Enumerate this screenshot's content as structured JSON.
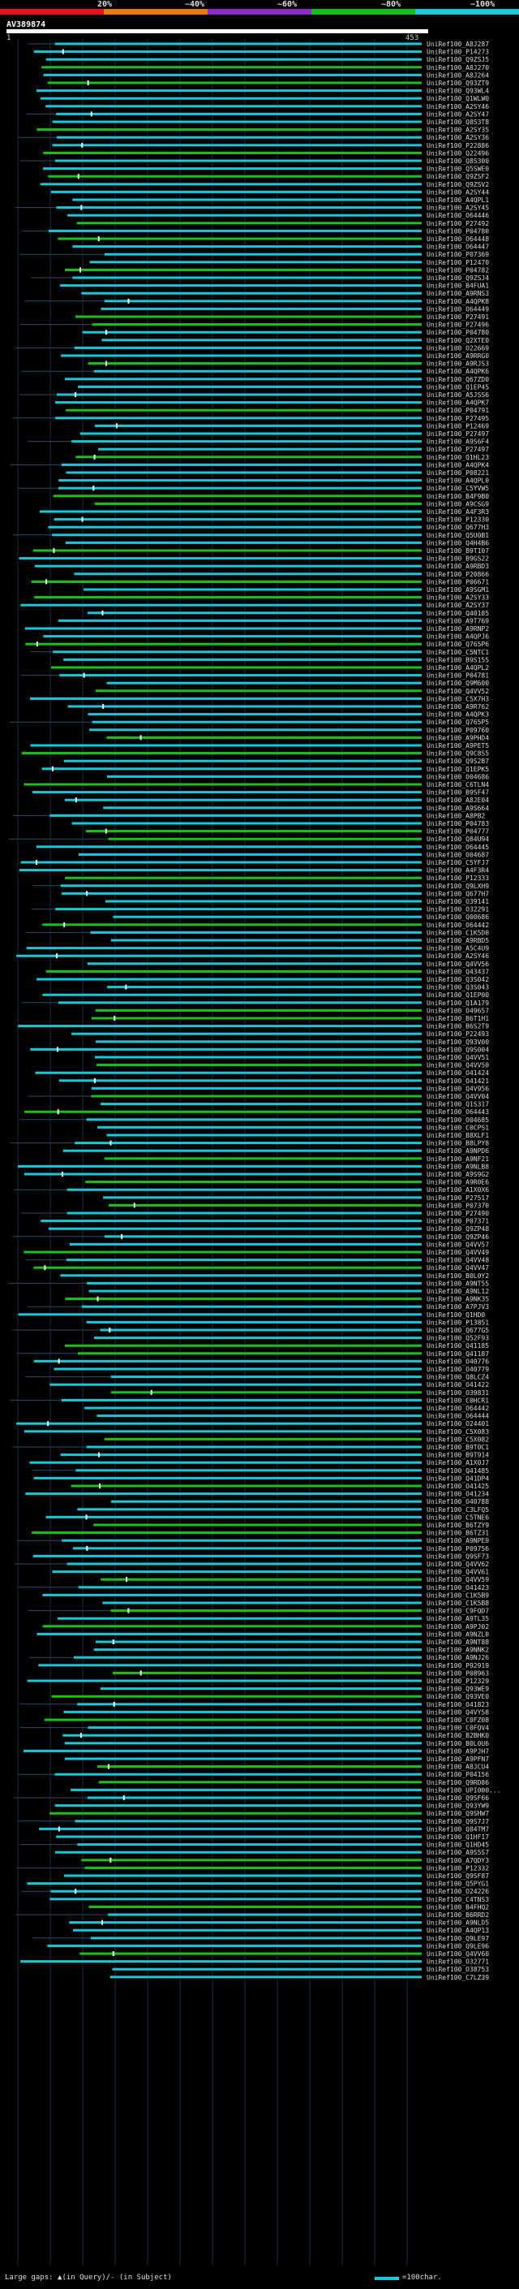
{
  "legend": {
    "labels": [
      "20%",
      "~40%",
      "~60%",
      "~80%",
      "~100%"
    ],
    "colors": [
      "#e8141d",
      "#e87a14",
      "#8c2ac8",
      "#18c018",
      "#18c8d8"
    ]
  },
  "query": {
    "name": "AV389874",
    "start": "1",
    "end": "453"
  },
  "hits": [
    "UniRef100_A8J287",
    "UniRef100_P14273",
    "UniRef100_Q9ZSJ5",
    "UniRef100_A8J270",
    "UniRef100_A8J264",
    "UniRef100_Q93ZT9",
    "UniRef100_Q93WL4",
    "UniRef100_Q1WLW0",
    "UniRef100_A2SY46",
    "UniRef100_A2SY47",
    "UniRef100_Q8S3T8",
    "UniRef100_A2SY35",
    "UniRef100_A2SY36",
    "UniRef100_P22886",
    "UniRef100_Q22496",
    "UniRef100_Q8S300",
    "UniRef100_Q5SWE0",
    "UniRef100_Q9ZSF2",
    "UniRef100_Q9ZSV2",
    "UniRef100_A2SY44",
    "UniRef100_A4QPL1",
    "UniRef100_A2SY45",
    "UniRef100_O64446",
    "UniRef100_P27492",
    "UniRef100_P04780",
    "UniRef100_O64448",
    "UniRef100_O64447",
    "UniRef100_P07369",
    "UniRef100_P12470",
    "UniRef100_P04782",
    "UniRef100_Q9ZSJ4",
    "UniRef100_B4FUA1",
    "UniRef100_A9RNS3",
    "UniRef100_A4QPK8",
    "UniRef100_O64449",
    "UniRef100_P27491",
    "UniRef100_P27496",
    "UniRef100_P04780",
    "UniRef100_Q2XTE0",
    "UniRef100_O22669",
    "UniRef100_A9RRG0",
    "UniRef100_A9RJS3",
    "UniRef100_A4QPK6",
    "UniRef100_Q67ZD0",
    "UniRef100_Q1EP45",
    "UniRef100_A5JSS6",
    "UniRef100_A4QPK7",
    "UniRef100_P04791",
    "UniRef100_P27495",
    "UniRef100_P12469",
    "UniRef100_P27497",
    "UniRef100_A9S6F4",
    "UniRef100_P27497",
    "UniRef100_Q1HL23",
    "UniRef100_A4QPK4",
    "UniRef100_P08221",
    "UniRef100_A4QPL0",
    "UniRef100_C5YVW5",
    "UniRef100_B4F9B0",
    "UniRef100_A9CSG9",
    "UniRef100_A4F3R3",
    "UniRef100_P12330",
    "UniRef100_Q677H3",
    "UniRef100_Q5U0B1",
    "UniRef100_Q4H4B6",
    "UniRef100_B9T107",
    "UniRef100_B9GS22",
    "UniRef100_A9RBD3",
    "UniRef100_P20866",
    "UniRef100_P06671",
    "UniRef100_A9SGM1",
    "UniRef100_A2SY33",
    "UniRef100_A2SY37",
    "UniRef100_Q40185",
    "UniRef100_A9T769",
    "UniRef100_A9RNP2",
    "UniRef100_A4QPJ6",
    "UniRef100_Q765P6",
    "UniRef100_C5NTC1",
    "UniRef100_B9S155",
    "UniRef100_A4QPL2",
    "UniRef100_P04781",
    "UniRef100_Q9M600",
    "UniRef100_Q4VV52",
    "UniRef100_C5X7H3",
    "UniRef100_A9R762",
    "UniRef100_A4QPK3",
    "UniRef100_Q765P5",
    "UniRef100_P09760",
    "UniRef100_A9PHD4",
    "UniRef100_A9PET5",
    "UniRef100_Q9C8S5",
    "UniRef100_Q9S2B7",
    "UniRef100_Q1EPK5",
    "UniRef100_O04686",
    "UniRef100_C6TLN4",
    "UniRef100_B9SF47",
    "UniRef100_A8JE04",
    "UniRef100_A9S664",
    "UniRef100_A8PB2",
    "UniRef100_P04783",
    "UniRef100_P04777",
    "UniRef100_Q84U94",
    "UniRef100_O64445",
    "UniRef100_O04687",
    "UniRef100_C5YFJ7",
    "UniRef100_A4F3R4",
    "UniRef100_P12333",
    "UniRef100_Q9LXH9",
    "UniRef100_Q677H7",
    "UniRef100_O39141",
    "UniRef100_O32291",
    "UniRef100_Q00686",
    "UniRef100_O64442",
    "UniRef100_C1K5D0",
    "UniRef100_A9RBD5",
    "UniRef100_A5C4U9",
    "UniRef100_A2SY46",
    "UniRef100_Q4VV56",
    "UniRef100_Q43437",
    "UniRef100_Q3S042",
    "UniRef100_Q3S043",
    "UniRef100_Q1EP00",
    "UniRef100_Q1A179",
    "UniRef100_O49657",
    "UniRef100_B6T1H1",
    "UniRef100_B6S2T9",
    "UniRef100_P22493",
    "UniRef100_Q93V00",
    "UniRef100_Q9S004",
    "UniRef100_Q4VV51",
    "UniRef100_Q4VV50",
    "UniRef100_O41424",
    "UniRef100_O41421",
    "UniRef100_Q4V956",
    "UniRef100_Q4VV04",
    "UniRef100_Q1S317",
    "UniRef100_O64443",
    "UniRef100_O04685",
    "UniRef100_C0CPS1",
    "UniRef100_B8XLF1",
    "UniRef100_B8LPY8",
    "UniRef100_A9NPD6",
    "UniRef100_A9NF21",
    "UniRef100_A9NLB8",
    "UniRef100_A9S9G2",
    "UniRef100_A9R0E6",
    "UniRef100_A1X0X6",
    "UniRef100_P27517",
    "UniRef100_P07370",
    "UniRef100_P27490",
    "UniRef100_P07371",
    "UniRef100_Q9ZP48",
    "UniRef100_Q9ZP46",
    "UniRef100_Q4VV57",
    "UniRef100_Q4VV49",
    "UniRef100_Q4VV48",
    "UniRef100_Q4VV47",
    "UniRef100_B0L0Y2",
    "UniRef100_A9NT55",
    "UniRef100_A9NL12",
    "UniRef100_A9NK35",
    "UniRef100_A7PJV3",
    "UniRef100_Q1HD0",
    "UniRef100_P13851",
    "UniRef100_Q677G5",
    "UniRef100_Q52F93",
    "UniRef100_Q41185",
    "UniRef100_Q41187",
    "UniRef100_O40776",
    "UniRef100_O40779",
    "UniRef100_Q8LCZ4",
    "UniRef100_O41422",
    "UniRef100_O39831",
    "UniRef100_C0HCR1",
    "UniRef100_O64442",
    "UniRef100_O64444",
    "UniRef100_O24401",
    "UniRef100_C5X083",
    "UniRef100_C5X082",
    "UniRef100_B9T0C1",
    "UniRef100_B9T914",
    "UniRef100_A1X0J7",
    "UniRef100_Q41485",
    "UniRef100_Q41DP4",
    "UniRef100_O41425",
    "UniRef100_O41234",
    "UniRef100_O40788",
    "UniRef100_C3LFQ5",
    "UniRef100_C5TNE6",
    "UniRef100_B6TZY9",
    "UniRef100_B6TZ31",
    "UniRef100_A9NPE9",
    "UniRef100_P09756",
    "UniRef100_Q9SF73",
    "UniRef100_Q4VV62",
    "UniRef100_Q4VV61",
    "UniRef100_Q4VV59",
    "UniRef100_O41423",
    "UniRef100_C1K5B9",
    "UniRef100_C1K5B8",
    "UniRef100_C9FQD7",
    "UniRef100_A9TL35",
    "UniRef100_A9PJ02",
    "UniRef100_A9NZL0",
    "UniRef100_A9NT88",
    "UniRef100_A9NNK2",
    "UniRef100_A9NJ26",
    "UniRef100_P92919",
    "UniRef100_P08963",
    "UniRef100_P12329",
    "UniRef100_Q93WE9",
    "UniRef100_Q93VE0",
    "UniRef100_O41823",
    "UniRef100_Q4VY58",
    "UniRef100_C0FZ08",
    "UniRef100_C0FQV4",
    "UniRef100_B2BHK0",
    "UniRef100_B0L0U6",
    "UniRef100_A9PJH7",
    "UniRef100_A9PFN7",
    "UniRef100_A8JCU4",
    "UniRef100_P04156",
    "UniRef100_Q9RD86",
    "UniRef100_UPI000...",
    "UniRef100_Q9SF66",
    "UniRef100_Q93YW9",
    "UniRef100_Q9SHW7",
    "UniRef100_Q9S7J7",
    "UniRef100_Q84TM7",
    "UniRef100_Q1HF17",
    "UniRef100_Q1HD45",
    "UniRef100_A9S5S7",
    "UniRef100_A7QDY3",
    "UniRef100_P12332",
    "UniRef100_Q9SF87",
    "UniRef100_Q5PYG1",
    "UniRef100_O24226",
    "UniRef100_C4TNS3",
    "UniRef100_B4FHQ2",
    "UniRef100_B6RRD2",
    "UniRef100_A9NLD5",
    "UniRef100_A4QP13",
    "UniRef100_Q9LE97",
    "UniRef100_Q9LE96",
    "UniRef100_Q4VV60",
    "UniRef100_O32771",
    "UniRef100_O38753",
    "UniRef100_C7LZ39"
  ],
  "footer": {
    "large_gaps_label": "Large gaps: ▲(in Query)/- (in Subject)",
    "scale_label": "=100char."
  }
}
